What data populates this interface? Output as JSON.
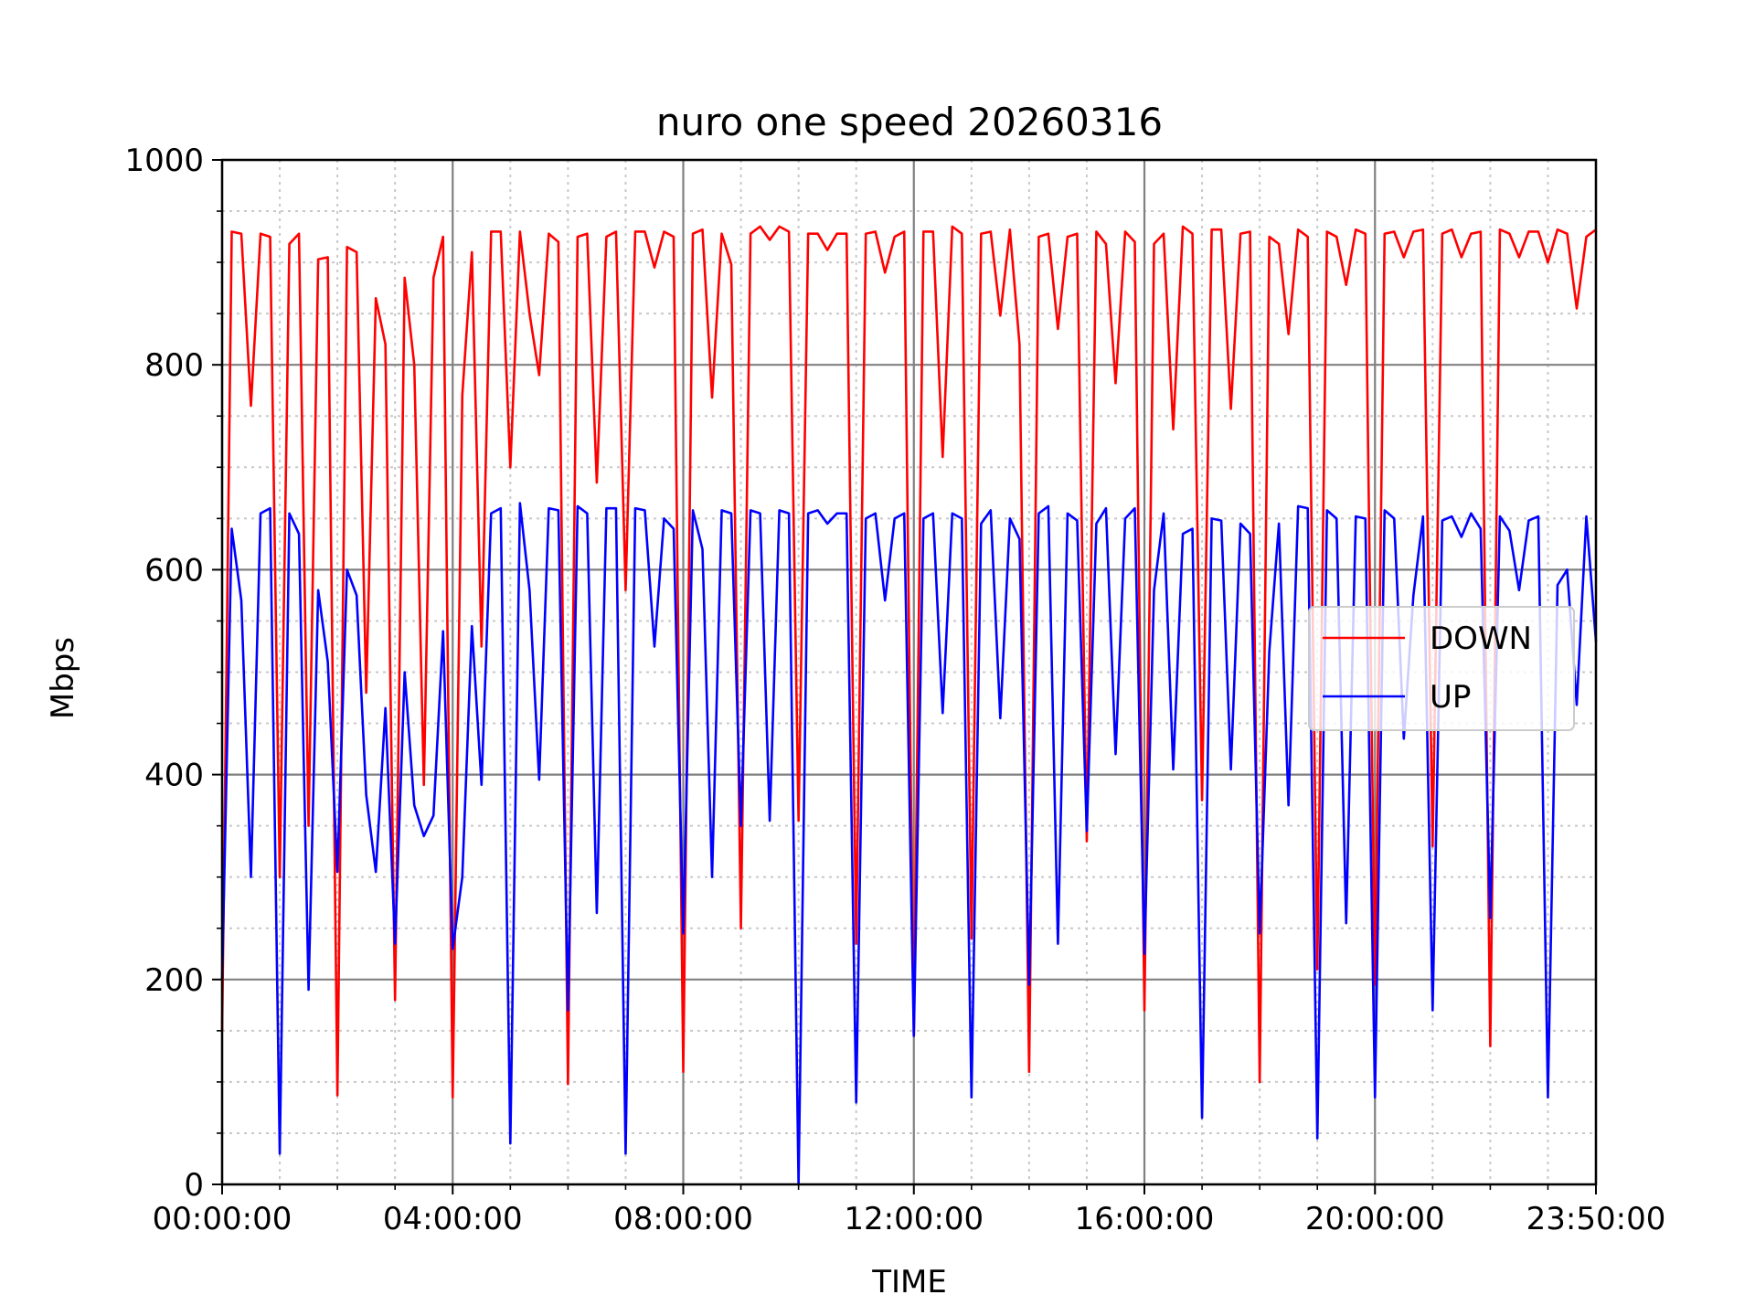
{
  "chart_data": {
    "type": "line",
    "title": "nuro one speed 20260316",
    "xlabel": "TIME",
    "ylabel": "Mbps",
    "xlim": [
      "00:00:00",
      "23:50:00"
    ],
    "ylim": [
      0,
      1000
    ],
    "x_tick_labels": [
      "00:00:00",
      "04:00:00",
      "08:00:00",
      "12:00:00",
      "16:00:00",
      "20:00:00",
      "23:50:00"
    ],
    "y_tick_labels": [
      "0",
      "200",
      "400",
      "600",
      "800",
      "1000"
    ],
    "grid": true,
    "legend": "center-right",
    "series": [
      {
        "name": "DOWN",
        "color": "#ff0000",
        "points": [
          [
            "00:00:00",
            150
          ],
          [
            "00:10:00",
            930
          ],
          [
            "00:20:00",
            928
          ],
          [
            "00:30:00",
            760
          ],
          [
            "00:40:00",
            928
          ],
          [
            "00:50:00",
            925
          ],
          [
            "01:00:00",
            300
          ],
          [
            "01:10:00",
            918
          ],
          [
            "01:20:00",
            928
          ],
          [
            "01:30:00",
            350
          ],
          [
            "01:40:00",
            903
          ],
          [
            "01:50:00",
            905
          ],
          [
            "02:00:00",
            87
          ],
          [
            "02:10:00",
            915
          ],
          [
            "02:20:00",
            910
          ],
          [
            "02:30:00",
            480
          ],
          [
            "02:40:00",
            865
          ],
          [
            "02:50:00",
            820
          ],
          [
            "03:00:00",
            180
          ],
          [
            "03:10:00",
            885
          ],
          [
            "03:20:00",
            800
          ],
          [
            "03:30:00",
            390
          ],
          [
            "03:40:00",
            885
          ],
          [
            "03:50:00",
            925
          ],
          [
            "04:00:00",
            85
          ],
          [
            "04:10:00",
            770
          ],
          [
            "04:20:00",
            910
          ],
          [
            "04:30:00",
            525
          ],
          [
            "04:40:00",
            930
          ],
          [
            "04:50:00",
            930
          ],
          [
            "05:00:00",
            700
          ],
          [
            "05:10:00",
            930
          ],
          [
            "05:20:00",
            850
          ],
          [
            "05:30:00",
            790
          ],
          [
            "05:40:00",
            928
          ],
          [
            "05:50:00",
            920
          ],
          [
            "06:00:00",
            98
          ],
          [
            "06:10:00",
            925
          ],
          [
            "06:20:00",
            928
          ],
          [
            "06:30:00",
            685
          ],
          [
            "06:40:00",
            925
          ],
          [
            "06:50:00",
            930
          ],
          [
            "07:00:00",
            580
          ],
          [
            "07:10:00",
            930
          ],
          [
            "07:20:00",
            930
          ],
          [
            "07:30:00",
            895
          ],
          [
            "07:40:00",
            930
          ],
          [
            "07:50:00",
            925
          ],
          [
            "08:00:00",
            110
          ],
          [
            "08:10:00",
            928
          ],
          [
            "08:20:00",
            932
          ],
          [
            "08:30:00",
            768
          ],
          [
            "08:40:00",
            928
          ],
          [
            "08:50:00",
            898
          ],
          [
            "09:00:00",
            250
          ],
          [
            "09:10:00",
            928
          ],
          [
            "09:20:00",
            935
          ],
          [
            "09:30:00",
            922
          ],
          [
            "09:40:00",
            935
          ],
          [
            "09:50:00",
            930
          ],
          [
            "10:00:00",
            355
          ],
          [
            "10:10:00",
            928
          ],
          [
            "10:20:00",
            928
          ],
          [
            "10:30:00",
            912
          ],
          [
            "10:40:00",
            928
          ],
          [
            "10:50:00",
            928
          ],
          [
            "11:00:00",
            235
          ],
          [
            "11:10:00",
            928
          ],
          [
            "11:20:00",
            930
          ],
          [
            "11:30:00",
            890
          ],
          [
            "11:40:00",
            925
          ],
          [
            "11:50:00",
            930
          ],
          [
            "12:00:00",
            145
          ],
          [
            "12:10:00",
            930
          ],
          [
            "12:20:00",
            930
          ],
          [
            "12:30:00",
            710
          ],
          [
            "12:40:00",
            935
          ],
          [
            "12:50:00",
            928
          ],
          [
            "13:00:00",
            240
          ],
          [
            "13:10:00",
            928
          ],
          [
            "13:20:00",
            930
          ],
          [
            "13:30:00",
            848
          ],
          [
            "13:40:00",
            932
          ],
          [
            "13:50:00",
            820
          ],
          [
            "14:00:00",
            110
          ],
          [
            "14:10:00",
            925
          ],
          [
            "14:20:00",
            928
          ],
          [
            "14:30:00",
            835
          ],
          [
            "14:40:00",
            925
          ],
          [
            "14:50:00",
            928
          ],
          [
            "15:00:00",
            335
          ],
          [
            "15:10:00",
            930
          ],
          [
            "15:20:00",
            918
          ],
          [
            "15:30:00",
            782
          ],
          [
            "15:40:00",
            930
          ],
          [
            "15:50:00",
            920
          ],
          [
            "16:00:00",
            170
          ],
          [
            "16:10:00",
            918
          ],
          [
            "16:20:00",
            928
          ],
          [
            "16:30:00",
            737
          ],
          [
            "16:40:00",
            935
          ],
          [
            "16:50:00",
            928
          ],
          [
            "17:00:00",
            375
          ],
          [
            "17:10:00",
            932
          ],
          [
            "17:20:00",
            932
          ],
          [
            "17:30:00",
            757
          ],
          [
            "17:40:00",
            928
          ],
          [
            "17:50:00",
            930
          ],
          [
            "18:00:00",
            100
          ],
          [
            "18:10:00",
            925
          ],
          [
            "18:20:00",
            918
          ],
          [
            "18:30:00",
            830
          ],
          [
            "18:40:00",
            932
          ],
          [
            "18:50:00",
            925
          ],
          [
            "19:00:00",
            210
          ],
          [
            "19:10:00",
            930
          ],
          [
            "19:20:00",
            925
          ],
          [
            "19:30:00",
            878
          ],
          [
            "19:40:00",
            932
          ],
          [
            "19:50:00",
            928
          ],
          [
            "20:00:00",
            195
          ],
          [
            "20:10:00",
            928
          ],
          [
            "20:20:00",
            930
          ],
          [
            "20:30:00",
            905
          ],
          [
            "20:40:00",
            930
          ],
          [
            "20:50:00",
            932
          ],
          [
            "21:00:00",
            330
          ],
          [
            "21:10:00",
            928
          ],
          [
            "21:20:00",
            932
          ],
          [
            "21:30:00",
            905
          ],
          [
            "21:40:00",
            928
          ],
          [
            "21:50:00",
            930
          ],
          [
            "22:00:00",
            135
          ],
          [
            "22:10:00",
            932
          ],
          [
            "22:20:00",
            928
          ],
          [
            "22:30:00",
            905
          ],
          [
            "22:40:00",
            930
          ],
          [
            "22:50:00",
            930
          ],
          [
            "23:00:00",
            900
          ],
          [
            "23:10:00",
            932
          ],
          [
            "23:20:00",
            928
          ],
          [
            "23:30:00",
            855
          ],
          [
            "23:40:00",
            925
          ],
          [
            "23:50:00",
            932
          ]
        ]
      },
      {
        "name": "UP",
        "color": "#0000ff",
        "points": [
          [
            "00:00:00",
            200
          ],
          [
            "00:10:00",
            640
          ],
          [
            "00:20:00",
            570
          ],
          [
            "00:30:00",
            300
          ],
          [
            "00:40:00",
            655
          ],
          [
            "00:50:00",
            660
          ],
          [
            "01:00:00",
            30
          ],
          [
            "01:10:00",
            655
          ],
          [
            "01:20:00",
            635
          ],
          [
            "01:30:00",
            190
          ],
          [
            "01:40:00",
            580
          ],
          [
            "01:50:00",
            510
          ],
          [
            "02:00:00",
            305
          ],
          [
            "02:10:00",
            600
          ],
          [
            "02:20:00",
            575
          ],
          [
            "02:30:00",
            380
          ],
          [
            "02:40:00",
            305
          ],
          [
            "02:50:00",
            465
          ],
          [
            "03:00:00",
            235
          ],
          [
            "03:10:00",
            500
          ],
          [
            "03:20:00",
            370
          ],
          [
            "03:30:00",
            340
          ],
          [
            "03:40:00",
            360
          ],
          [
            "03:50:00",
            540
          ],
          [
            "04:00:00",
            230
          ],
          [
            "04:10:00",
            300
          ],
          [
            "04:20:00",
            545
          ],
          [
            "04:30:00",
            390
          ],
          [
            "04:40:00",
            655
          ],
          [
            "04:50:00",
            660
          ],
          [
            "05:00:00",
            40
          ],
          [
            "05:10:00",
            665
          ],
          [
            "05:20:00",
            580
          ],
          [
            "05:30:00",
            395
          ],
          [
            "05:40:00",
            660
          ],
          [
            "05:50:00",
            658
          ],
          [
            "06:00:00",
            170
          ],
          [
            "06:10:00",
            662
          ],
          [
            "06:20:00",
            655
          ],
          [
            "06:30:00",
            265
          ],
          [
            "06:40:00",
            660
          ],
          [
            "06:50:00",
            660
          ],
          [
            "07:00:00",
            30
          ],
          [
            "07:10:00",
            660
          ],
          [
            "07:20:00",
            658
          ],
          [
            "07:30:00",
            525
          ],
          [
            "07:40:00",
            650
          ],
          [
            "07:50:00",
            640
          ],
          [
            "08:00:00",
            245
          ],
          [
            "08:10:00",
            658
          ],
          [
            "08:20:00",
            620
          ],
          [
            "08:30:00",
            300
          ],
          [
            "08:40:00",
            658
          ],
          [
            "08:50:00",
            655
          ],
          [
            "09:00:00",
            350
          ],
          [
            "09:10:00",
            658
          ],
          [
            "09:20:00",
            655
          ],
          [
            "09:30:00",
            355
          ],
          [
            "09:40:00",
            658
          ],
          [
            "09:50:00",
            655
          ],
          [
            "10:00:00",
            0
          ],
          [
            "10:10:00",
            655
          ],
          [
            "10:20:00",
            658
          ],
          [
            "10:30:00",
            645
          ],
          [
            "10:40:00",
            655
          ],
          [
            "10:50:00",
            655
          ],
          [
            "11:00:00",
            80
          ],
          [
            "11:10:00",
            650
          ],
          [
            "11:20:00",
            655
          ],
          [
            "11:30:00",
            570
          ],
          [
            "11:40:00",
            650
          ],
          [
            "11:50:00",
            655
          ],
          [
            "12:00:00",
            145
          ],
          [
            "12:10:00",
            650
          ],
          [
            "12:20:00",
            655
          ],
          [
            "12:30:00",
            460
          ],
          [
            "12:40:00",
            655
          ],
          [
            "12:50:00",
            650
          ],
          [
            "13:00:00",
            85
          ],
          [
            "13:10:00",
            645
          ],
          [
            "13:20:00",
            658
          ],
          [
            "13:30:00",
            455
          ],
          [
            "13:40:00",
            650
          ],
          [
            "13:50:00",
            630
          ],
          [
            "14:00:00",
            195
          ],
          [
            "14:10:00",
            655
          ],
          [
            "14:20:00",
            662
          ],
          [
            "14:30:00",
            235
          ],
          [
            "14:40:00",
            655
          ],
          [
            "14:50:00",
            648
          ],
          [
            "15:00:00",
            345
          ],
          [
            "15:10:00",
            645
          ],
          [
            "15:20:00",
            660
          ],
          [
            "15:30:00",
            420
          ],
          [
            "15:40:00",
            650
          ],
          [
            "15:50:00",
            660
          ],
          [
            "16:00:00",
            225
          ],
          [
            "16:10:00",
            580
          ],
          [
            "16:20:00",
            655
          ],
          [
            "16:30:00",
            405
          ],
          [
            "16:40:00",
            635
          ],
          [
            "16:50:00",
            640
          ],
          [
            "17:00:00",
            65
          ],
          [
            "17:10:00",
            650
          ],
          [
            "17:20:00",
            648
          ],
          [
            "17:30:00",
            405
          ],
          [
            "17:40:00",
            645
          ],
          [
            "17:50:00",
            635
          ],
          [
            "18:00:00",
            245
          ],
          [
            "18:10:00",
            520
          ],
          [
            "18:20:00",
            645
          ],
          [
            "18:30:00",
            370
          ],
          [
            "18:40:00",
            662
          ],
          [
            "18:50:00",
            660
          ],
          [
            "19:00:00",
            45
          ],
          [
            "19:10:00",
            658
          ],
          [
            "19:20:00",
            650
          ],
          [
            "19:30:00",
            255
          ],
          [
            "19:40:00",
            652
          ],
          [
            "19:50:00",
            650
          ],
          [
            "20:00:00",
            85
          ],
          [
            "20:10:00",
            658
          ],
          [
            "20:20:00",
            650
          ],
          [
            "20:30:00",
            435
          ],
          [
            "20:40:00",
            575
          ],
          [
            "20:50:00",
            652
          ],
          [
            "21:00:00",
            170
          ],
          [
            "21:10:00",
            648
          ],
          [
            "21:20:00",
            652
          ],
          [
            "21:30:00",
            632
          ],
          [
            "21:40:00",
            655
          ],
          [
            "21:50:00",
            640
          ],
          [
            "22:00:00",
            260
          ],
          [
            "22:10:00",
            652
          ],
          [
            "22:20:00",
            638
          ],
          [
            "22:30:00",
            580
          ],
          [
            "22:40:00",
            648
          ],
          [
            "22:50:00",
            652
          ],
          [
            "23:00:00",
            85
          ],
          [
            "23:10:00",
            585
          ],
          [
            "23:20:00",
            600
          ],
          [
            "23:30:00",
            468
          ],
          [
            "23:40:00",
            652
          ],
          [
            "23:50:00",
            530
          ]
        ]
      }
    ]
  }
}
